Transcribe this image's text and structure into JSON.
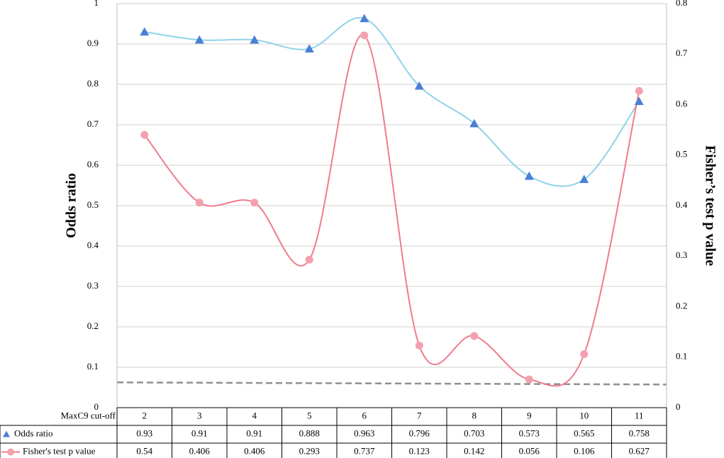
{
  "chart_data": {
    "type": "line",
    "xlabel": "MaxC9 cut-off",
    "ylabel": "Odds ratio",
    "y2label": "Fisher’s test p value",
    "categories": [
      "2",
      "3",
      "4",
      "5",
      "6",
      "7",
      "8",
      "9",
      "10",
      "11"
    ],
    "ylim": [
      0,
      1
    ],
    "y_ticks": [
      "0",
      "0.1",
      "0.2",
      "0.3",
      "0.4",
      "0.5",
      "0.6",
      "0.7",
      "0.8",
      "0.9",
      "1"
    ],
    "y2lim": [
      0,
      0.8
    ],
    "y2_ticks": [
      "0",
      "0.1",
      "0.2",
      "0.3",
      "0.4",
      "0.5",
      "0.6",
      "0.7",
      "0.8"
    ],
    "grid": true,
    "legend": "data-table",
    "series": [
      {
        "name": "Odds ratio",
        "axis": "left",
        "marker": "triangle",
        "line_color": "#8fd3e8",
        "marker_color": "#4a7fd6",
        "values": [
          0.93,
          0.91,
          0.91,
          0.888,
          0.963,
          0.796,
          0.703,
          0.573,
          0.565,
          0.758
        ],
        "labels": [
          "0.93",
          "0.91",
          "0.91",
          "0.888",
          "0.963",
          "0.796",
          "0.703",
          "0.573",
          "0.565",
          "0.758"
        ]
      },
      {
        "name": "Fisher's test p value",
        "axis": "right",
        "marker": "circle",
        "line_color": "#f07a8c",
        "marker_color": "#f3a0ae",
        "values": [
          0.54,
          0.406,
          0.406,
          0.293,
          0.737,
          0.123,
          0.142,
          0.056,
          0.106,
          0.627
        ],
        "labels": [
          "0.54",
          "0.406",
          "0.406",
          "0.293",
          "0.737",
          "0.123",
          "0.142",
          "0.056",
          "0.106",
          "0.627"
        ]
      }
    ],
    "reference_line": {
      "axis": "right",
      "value": 0.05,
      "style": "dashed",
      "color": "#909090"
    }
  }
}
